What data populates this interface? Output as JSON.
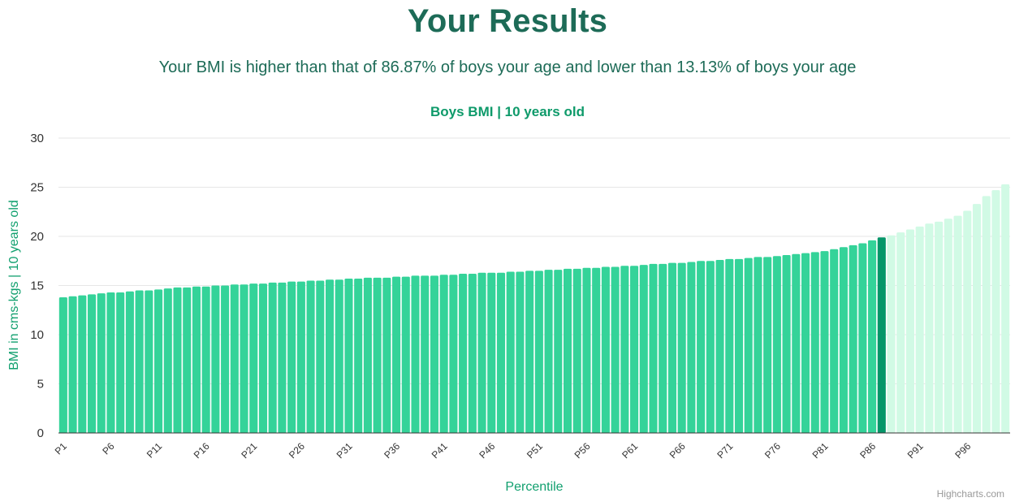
{
  "page": {
    "title": "Your Results",
    "summary": "Your BMI is higher than that of 86.87% of boys your age and lower than 13.13% of boys your age"
  },
  "credit": "Highcharts.com",
  "colors": {
    "below": "#34d399",
    "current": "#059669",
    "above": "#d1fae5",
    "title": "#1d6b57",
    "accent": "#0e9a6a"
  },
  "chart_data": {
    "type": "bar",
    "title": "Boys BMI | 10 years old",
    "xlabel": "Percentile",
    "ylabel": "BMI in cms-kgs | 10 years old",
    "ylim": [
      0,
      30
    ],
    "yticks": [
      0,
      5,
      10,
      15,
      20,
      25,
      30
    ],
    "grid": true,
    "highlight_index": 86,
    "tick_labels": [
      "P1",
      "P6",
      "P11",
      "P16",
      "P21",
      "P26",
      "P31",
      "P36",
      "P41",
      "P46",
      "P51",
      "P56",
      "P61",
      "P66",
      "P71",
      "P76",
      "P81",
      "P86",
      "P91",
      "P96"
    ],
    "categories": [
      "P1",
      "P2",
      "P3",
      "P4",
      "P5",
      "P6",
      "P7",
      "P8",
      "P9",
      "P10",
      "P11",
      "P12",
      "P13",
      "P14",
      "P15",
      "P16",
      "P17",
      "P18",
      "P19",
      "P20",
      "P21",
      "P22",
      "P23",
      "P24",
      "P25",
      "P26",
      "P27",
      "P28",
      "P29",
      "P30",
      "P31",
      "P32",
      "P33",
      "P34",
      "P35",
      "P36",
      "P37",
      "P38",
      "P39",
      "P40",
      "P41",
      "P42",
      "P43",
      "P44",
      "P45",
      "P46",
      "P47",
      "P48",
      "P49",
      "P50",
      "P51",
      "P52",
      "P53",
      "P54",
      "P55",
      "P56",
      "P57",
      "P58",
      "P59",
      "P60",
      "P61",
      "P62",
      "P63",
      "P64",
      "P65",
      "P66",
      "P67",
      "P68",
      "P69",
      "P70",
      "P71",
      "P72",
      "P73",
      "P74",
      "P75",
      "P76",
      "P77",
      "P78",
      "P79",
      "P80",
      "P81",
      "P82",
      "P83",
      "P84",
      "P85",
      "P86",
      "P87",
      "P88",
      "P89",
      "P90",
      "P91",
      "P92",
      "P93",
      "P94",
      "P95",
      "P96",
      "P97",
      "P98",
      "P99",
      "P100"
    ],
    "values": [
      13.8,
      13.9,
      14.0,
      14.1,
      14.2,
      14.3,
      14.3,
      14.4,
      14.5,
      14.5,
      14.6,
      14.7,
      14.8,
      14.8,
      14.9,
      14.9,
      15.0,
      15.0,
      15.1,
      15.1,
      15.2,
      15.2,
      15.3,
      15.3,
      15.4,
      15.4,
      15.5,
      15.5,
      15.6,
      15.6,
      15.7,
      15.7,
      15.8,
      15.8,
      15.8,
      15.9,
      15.9,
      16.0,
      16.0,
      16.0,
      16.1,
      16.1,
      16.2,
      16.2,
      16.3,
      16.3,
      16.3,
      16.4,
      16.4,
      16.5,
      16.5,
      16.6,
      16.6,
      16.7,
      16.7,
      16.8,
      16.8,
      16.9,
      16.9,
      17.0,
      17.0,
      17.1,
      17.2,
      17.2,
      17.3,
      17.3,
      17.4,
      17.5,
      17.5,
      17.6,
      17.7,
      17.7,
      17.8,
      17.9,
      17.9,
      18.0,
      18.1,
      18.2,
      18.3,
      18.4,
      18.5,
      18.7,
      18.9,
      19.1,
      19.3,
      19.6,
      19.9,
      20.1,
      20.4,
      20.7,
      21.0,
      21.3,
      21.5,
      21.8,
      22.1,
      22.6,
      23.3,
      24.1,
      24.7,
      25.3
    ]
  }
}
